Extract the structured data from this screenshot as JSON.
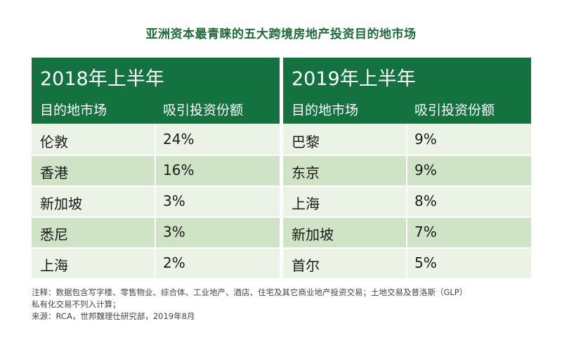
{
  "title": "亚洲资本最青睐的五大跨境房地产投资目的地市场",
  "tables": [
    {
      "period": "2018年上半年",
      "col_market": "目的地市场",
      "col_share": "吸引投资份额",
      "rows": [
        {
          "market": "伦敦",
          "share": "24%"
        },
        {
          "market": "香港",
          "share": "16%"
        },
        {
          "market": "新加坡",
          "share": "3%"
        },
        {
          "market": "悉尼",
          "share": "3%"
        },
        {
          "market": "上海",
          "share": "2%"
        }
      ]
    },
    {
      "period": "2019年上半年",
      "col_market": "目的地市场",
      "col_share": "吸引投资份额",
      "rows": [
        {
          "market": "巴黎",
          "share": "9%"
        },
        {
          "market": "东京",
          "share": "9%"
        },
        {
          "market": "上海",
          "share": "8%"
        },
        {
          "market": "新加坡",
          "share": "7%"
        },
        {
          "market": "首尔",
          "share": "5%"
        }
      ]
    }
  ],
  "notes": {
    "line1": "注释：数据包含写字楼、零售物业、综合体、工业地产、酒店、住宅及其它商业地产投资交易；土地交易及普洛斯（GLP）",
    "line2": "私有化交易不列入计算；",
    "line3": "来源：RCA，世邦魏理仕研究部，2019年8月"
  },
  "colors": {
    "header_green": "#13723f",
    "title_green": "#1f6b3a",
    "row_light": "#ebf3e7",
    "row_dark": "#cfe3c7"
  }
}
